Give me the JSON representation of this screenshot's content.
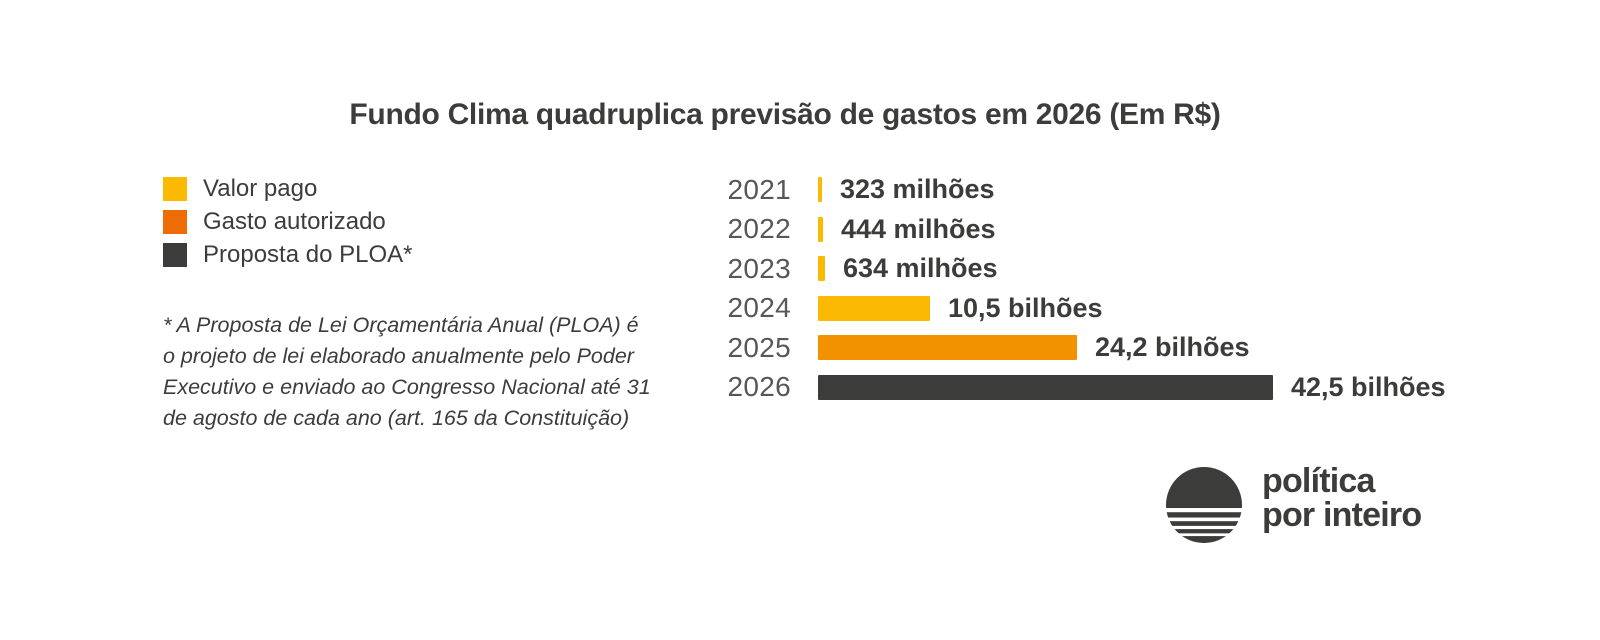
{
  "title": "Fundo Clima quadruplica previsão de gastos em 2026 (Em R$)",
  "legend": {
    "items": [
      {
        "label": "Valor pago",
        "color": "#FBB901"
      },
      {
        "label": "Gasto autorizado",
        "color": "#ED6C05"
      },
      {
        "label": "Proposta do PLOA*",
        "color": "#3C3C3B"
      }
    ]
  },
  "footnote": {
    "lines": [
      "* A Proposta de Lei Orçamentária Anual (PLOA) é",
      "o projeto de lei elaborado anualmente pelo Poder",
      "Executivo e enviado ao Congresso Nacional até 31",
      "de agosto de cada ano (art. 165 da Constituição)"
    ]
  },
  "chart_data": {
    "type": "bar",
    "orientation": "horizontal",
    "title": "Fundo Clima quadruplica previsão de gastos em 2026 (Em R$)",
    "unit": "R$",
    "categories": [
      "2021",
      "2022",
      "2023",
      "2024",
      "2025",
      "2026"
    ],
    "values_billions": [
      0.323,
      0.444,
      0.634,
      10.5,
      24.2,
      42.5
    ],
    "value_labels": [
      "323 milhões",
      "444 milhões",
      "634 milhões",
      "10,5 bilhões",
      "24,2 bilhões",
      "42,5 bilhões"
    ],
    "series_by_category": [
      "Valor pago",
      "Valor pago",
      "Valor pago",
      "Valor pago",
      "Gasto autorizado",
      "Proposta do PLOA*"
    ],
    "bar_colors": [
      "#FBB901",
      "#FBB901",
      "#FBB901",
      "#FBB901",
      "#F39200",
      "#3C3C3B"
    ],
    "xlim_billions": [
      0,
      45
    ],
    "grid": false,
    "value_labels_position": "end",
    "category_label_color": "#575756",
    "value_label_color": "#3C3C3B"
  },
  "logo": {
    "line1": "política",
    "line2": "por inteiro",
    "color": "#3C3C3B"
  }
}
